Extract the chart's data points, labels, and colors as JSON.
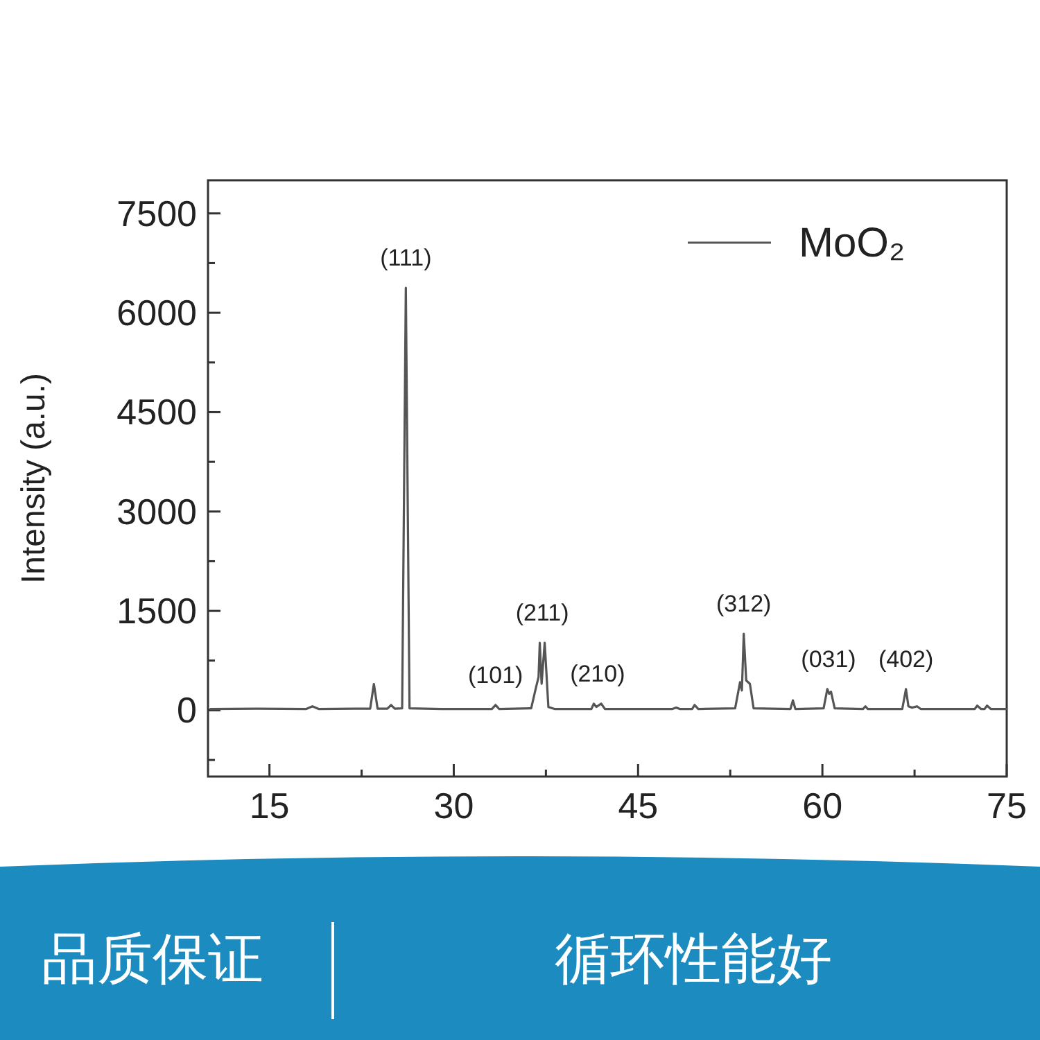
{
  "chart_data": {
    "type": "line",
    "ylabel": "Intensity (a.u.)",
    "xlim": [
      10,
      75
    ],
    "ylim": [
      -1000,
      8000
    ],
    "xticks": [
      15,
      {
        "value": 22.5,
        "label": null
      },
      30,
      {
        "value": 37.5,
        "label": null
      },
      45,
      {
        "value": 52.5,
        "label": null
      },
      60,
      {
        "value": 67.5,
        "label": null
      },
      75
    ],
    "yticks": [
      {
        "value": -750,
        "label": null
      },
      0,
      {
        "value": 750,
        "label": null
      },
      1500,
      {
        "value": 2250,
        "label": null
      },
      3000,
      {
        "value": 3750,
        "label": null
      },
      4500,
      {
        "value": 5250,
        "label": null
      },
      6000,
      {
        "value": 6750,
        "label": null
      },
      7500
    ],
    "grid": false,
    "legend": "top right",
    "marker": "none",
    "line_style": "solid",
    "series": [
      {
        "name": "MoO₂",
        "color": "#555555",
        "x": [
          10.2,
          14,
          18.0,
          18.5,
          19.0,
          22,
          23.2,
          23.5,
          23.8,
          24.6,
          24.9,
          25.2,
          25.8,
          26.1,
          26.4,
          29,
          32,
          33.1,
          33.4,
          33.7,
          36.3,
          36.7,
          36.9,
          37.0,
          37.15,
          37.4,
          37.7,
          38.2,
          41.2,
          41.4,
          41.6,
          42.0,
          42.3,
          47.8,
          48.1,
          48.4,
          49.4,
          49.6,
          49.9,
          52.9,
          53.3,
          53.45,
          53.6,
          53.8,
          54.1,
          54.4,
          57.4,
          57.6,
          57.8,
          60.1,
          60.4,
          60.55,
          60.7,
          61.0,
          63.3,
          63.5,
          63.7,
          66.5,
          66.8,
          67.0,
          67.3,
          67.7,
          68.0,
          72.4,
          72.6,
          72.9,
          73.2,
          73.4,
          73.7,
          75
        ],
        "values": [
          20,
          25,
          20,
          60,
          20,
          25,
          25,
          397,
          25,
          25,
          80,
          25,
          30,
          6378,
          30,
          20,
          20,
          20,
          80,
          20,
          30,
          350,
          500,
          1020,
          400,
          1020,
          50,
          20,
          20,
          100,
          50,
          100,
          20,
          20,
          40,
          20,
          20,
          80,
          20,
          30,
          425,
          300,
          1155,
          450,
          400,
          30,
          20,
          150,
          20,
          30,
          320,
          250,
          280,
          30,
          20,
          60,
          20,
          20,
          320,
          60,
          40,
          60,
          20,
          20,
          70,
          20,
          20,
          70,
          20,
          20
        ]
      }
    ],
    "annotations": [
      {
        "text": "(111)",
        "x": 26.1,
        "y": 6378
      },
      {
        "text": "(101)",
        "x": 33.4,
        "y": 80
      },
      {
        "text": "(211)",
        "x": 37.2,
        "y": 1020
      },
      {
        "text": "(210)",
        "x": 41.7,
        "y": 100
      },
      {
        "text": "(312)",
        "x": 53.6,
        "y": 1155
      },
      {
        "text": "(031)",
        "x": 60.5,
        "y": 320
      },
      {
        "text": "(402)",
        "x": 66.8,
        "y": 320
      },
      "品质保证",
      "循环性能好"
    ]
  }
}
